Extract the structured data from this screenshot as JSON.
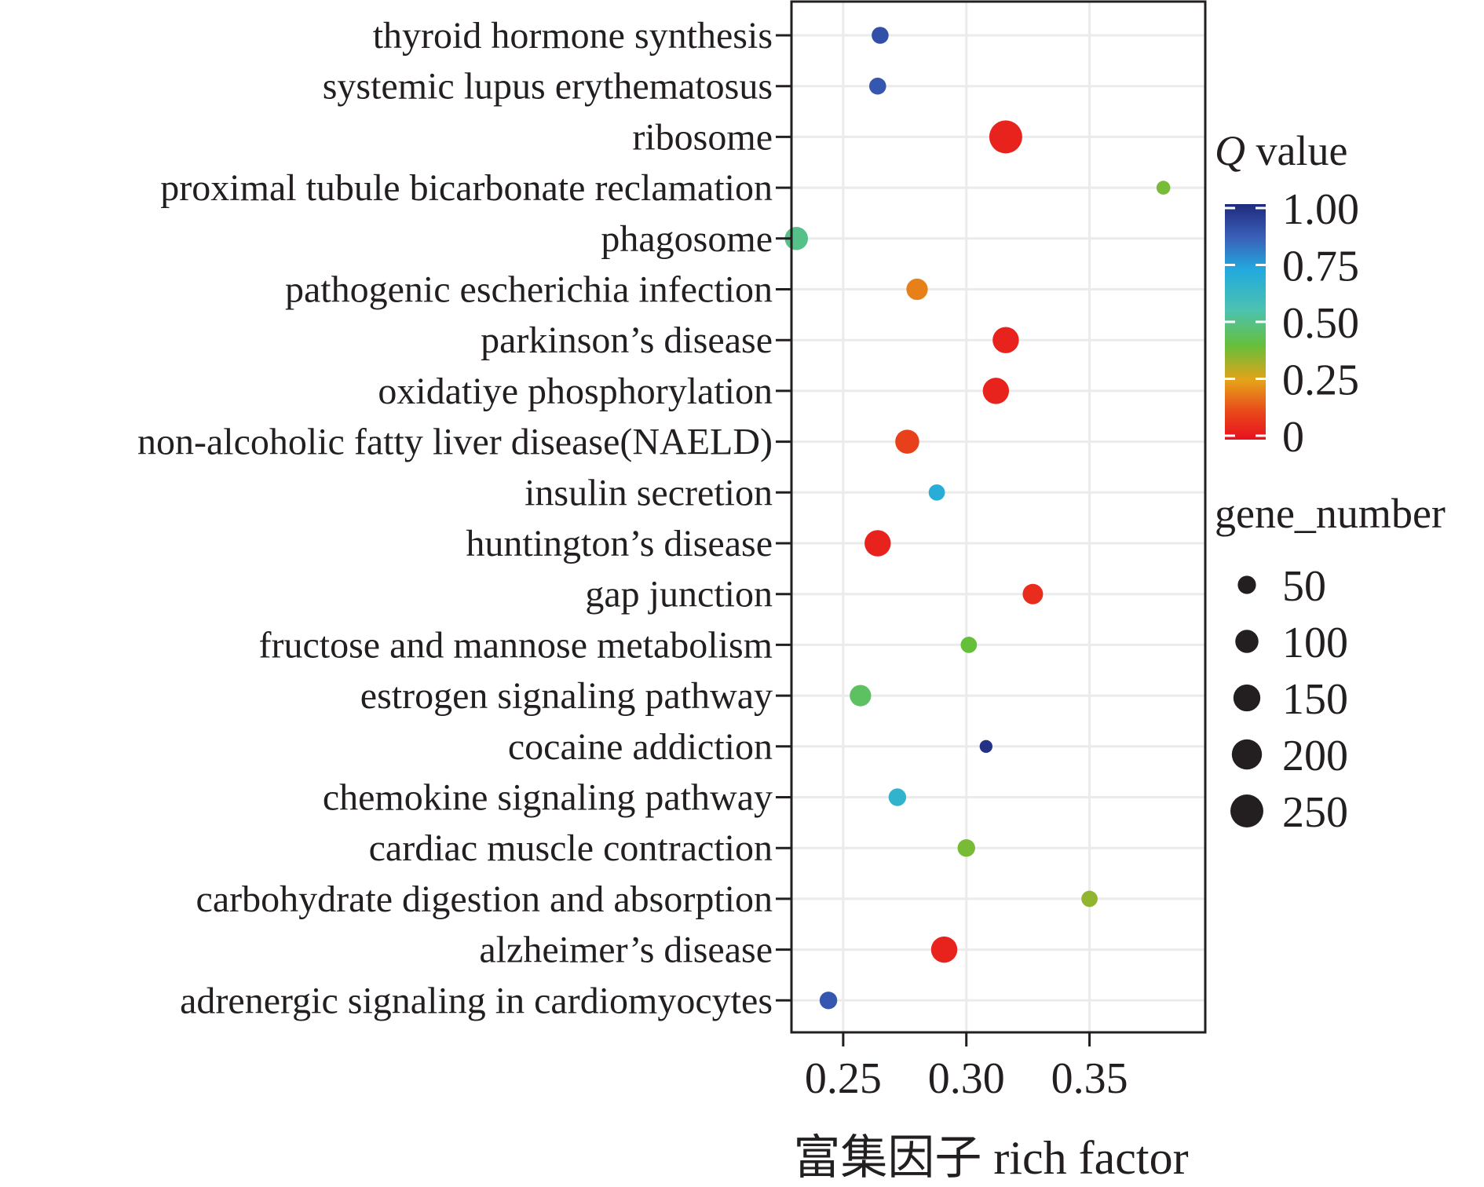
{
  "chart_data": {
    "type": "scatter",
    "categories": [
      "thyroid hormone synthesis",
      "systemic lupus erythematosus",
      "ribosome",
      "proximal tubule bicarbonate reclamation",
      "phagosome",
      "pathogenic escherichia infection",
      "parkinson’s disease",
      "oxidatiye phosphorylation",
      "non-alcoholic fatty liver disease(NAELD)",
      "insulin secretion",
      "huntington’s disease",
      "gap junction",
      "fructose and mannose metabolism",
      "estrogen signaling pathway",
      "cocaine addiction",
      "chemokine signaling pathway",
      "cardiac muscle contraction",
      "carbohydrate digestion and absorption",
      "alzheimer’s disease",
      "adrenergic signaling in cardiomyocytes"
    ],
    "rich_factor": [
      0.265,
      0.264,
      0.316,
      0.38,
      0.231,
      0.28,
      0.316,
      0.312,
      0.276,
      0.288,
      0.264,
      0.327,
      0.301,
      0.257,
      0.308,
      0.272,
      0.3,
      0.35,
      0.291,
      0.244
    ],
    "q_value": [
      0.9,
      0.88,
      0.04,
      0.38,
      0.5,
      0.2,
      0.04,
      0.04,
      0.1,
      0.7,
      0.04,
      0.06,
      0.4,
      0.45,
      0.98,
      0.66,
      0.38,
      0.35,
      0.04,
      0.88
    ],
    "gene_number": [
      40,
      40,
      250,
      20,
      100,
      80,
      140,
      140,
      110,
      35,
      140,
      70,
      35,
      80,
      15,
      45,
      45,
      35,
      140,
      45
    ],
    "xticks": [
      "0.25",
      "0.30",
      "0.35"
    ],
    "xtick_values": [
      0.25,
      0.3,
      0.35
    ],
    "xlim": [
      0.229,
      0.397
    ],
    "xlabel": "富集因子 rich factor",
    "grid": true,
    "legend_position": "right",
    "color_legend": {
      "title_q": "Q",
      "title_rest": " value",
      "ticks": [
        "1.00",
        "0.75",
        "0.50",
        "0.25",
        "0"
      ],
      "tick_values": [
        1.0,
        0.75,
        0.5,
        0.25,
        0.0
      ],
      "colors": [
        "#e8101f",
        "#e84a1a",
        "#e6a219",
        "#66bf3a",
        "#4cc2b0",
        "#22aadd",
        "#3a5fb8",
        "#1f2a7c"
      ]
    },
    "size_legend": {
      "title": "gene_number",
      "ticks": [
        "50",
        "100",
        "150",
        "200",
        "250"
      ],
      "tick_values": [
        50,
        100,
        150,
        200,
        250
      ]
    }
  }
}
